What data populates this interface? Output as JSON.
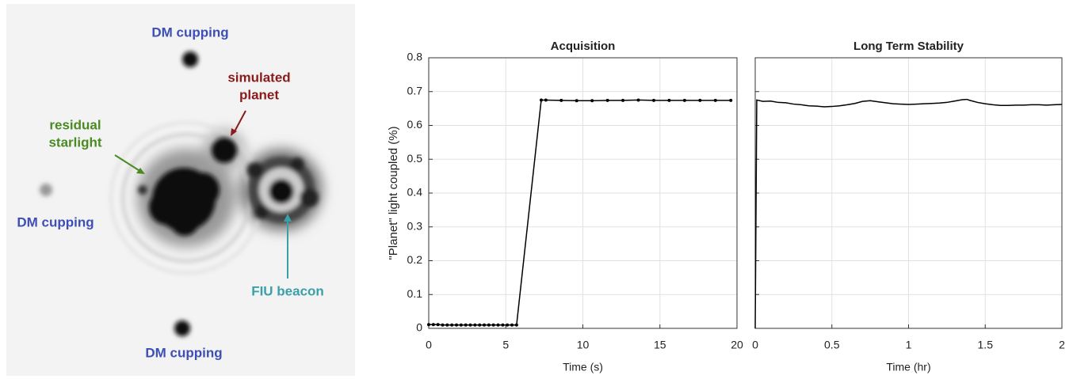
{
  "image_labels": {
    "dm_top": "DM cupping",
    "dm_left": "DM cupping",
    "dm_bottom": "DM cupping",
    "planet_1": "simulated",
    "planet_2": "planet",
    "starlight_1": "residual",
    "starlight_2": "starlight",
    "beacon": "FIU beacon"
  },
  "y_label": "\"Planet\" light coupled (%)",
  "chart_data": [
    {
      "type": "line",
      "title": "Acquisition",
      "x_label": "Time (s)",
      "color": "#000000",
      "markers": true,
      "grid": true,
      "x": [
        0,
        0.3,
        0.6,
        0.9,
        1.2,
        1.5,
        1.8,
        2.1,
        2.4,
        2.7,
        3.0,
        3.3,
        3.6,
        3.9,
        4.2,
        4.5,
        4.8,
        5.1,
        5.4,
        5.7,
        7.3,
        7.6,
        8.6,
        9.6,
        10.6,
        11.6,
        12.6,
        13.6,
        14.6,
        15.6,
        16.6,
        17.6,
        18.6,
        19.6
      ],
      "values": [
        0.011,
        0.011,
        0.011,
        0.01,
        0.01,
        0.01,
        0.01,
        0.01,
        0.01,
        0.01,
        0.01,
        0.01,
        0.01,
        0.01,
        0.01,
        0.01,
        0.01,
        0.01,
        0.01,
        0.01,
        0.675,
        0.675,
        0.674,
        0.673,
        0.673,
        0.674,
        0.674,
        0.675,
        0.674,
        0.674,
        0.674,
        0.674,
        0.674,
        0.674
      ],
      "xlim": [
        0,
        20
      ],
      "xticks": [
        0,
        5,
        10,
        15,
        20
      ],
      "ylim": [
        0,
        0.8
      ],
      "yticks": [
        0,
        0.1,
        0.2,
        0.3,
        0.4,
        0.5,
        0.6,
        0.7,
        0.8
      ]
    },
    {
      "type": "line",
      "title": "Long Term Stability",
      "x_label": "Time (hr)",
      "color": "#000000",
      "markers": false,
      "grid": true,
      "sharey": true,
      "x": [
        0,
        0.01,
        0.05,
        0.1,
        0.15,
        0.2,
        0.25,
        0.3,
        0.35,
        0.4,
        0.45,
        0.5,
        0.55,
        0.6,
        0.65,
        0.7,
        0.75,
        0.8,
        0.85,
        0.9,
        0.95,
        1.0,
        1.05,
        1.1,
        1.15,
        1.2,
        1.25,
        1.3,
        1.35,
        1.38,
        1.4,
        1.45,
        1.5,
        1.55,
        1.6,
        1.65,
        1.7,
        1.75,
        1.8,
        1.85,
        1.9,
        1.95,
        2.0
      ],
      "values": [
        0,
        0.675,
        0.671,
        0.672,
        0.668,
        0.667,
        0.663,
        0.661,
        0.658,
        0.657,
        0.655,
        0.656,
        0.658,
        0.661,
        0.665,
        0.671,
        0.673,
        0.67,
        0.667,
        0.664,
        0.663,
        0.662,
        0.663,
        0.664,
        0.665,
        0.666,
        0.668,
        0.672,
        0.676,
        0.677,
        0.674,
        0.668,
        0.664,
        0.661,
        0.659,
        0.659,
        0.66,
        0.66,
        0.661,
        0.661,
        0.66,
        0.661,
        0.662
      ],
      "xlim": [
        0,
        2
      ],
      "xticks": [
        0,
        0.5,
        1,
        1.5,
        2
      ],
      "ylim": [
        0,
        0.8
      ],
      "yticks": [
        0,
        0.1,
        0.2,
        0.3,
        0.4,
        0.5,
        0.6,
        0.7,
        0.8
      ]
    }
  ]
}
